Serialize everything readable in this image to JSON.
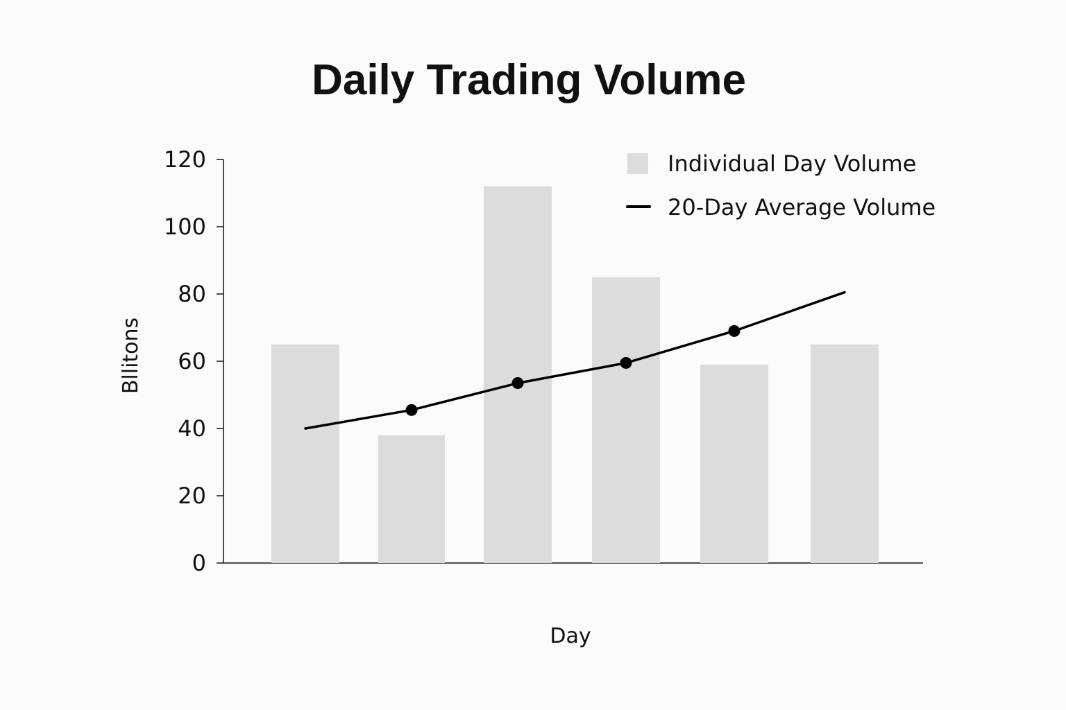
{
  "chart_data": {
    "type": "bar",
    "title": "Daily Trading Volume",
    "xlabel": "Day",
    "ylabel": "Bllitons",
    "ylim": [
      0,
      120
    ],
    "yticks": [
      0,
      20,
      40,
      60,
      80,
      100,
      120
    ],
    "categories": [
      "",
      "",
      "",
      "",
      "",
      ""
    ],
    "grid": false,
    "legend_position": "top-right",
    "series": [
      {
        "name": "Individual Day Volume",
        "kind": "bar",
        "color": "#dcdcdc",
        "values": [
          65,
          38,
          112,
          85,
          59,
          65
        ]
      },
      {
        "name": "20-Day Average Volume",
        "kind": "line",
        "color": "#000000",
        "values": [
          40,
          45.5,
          53.5,
          59.5,
          69,
          80.5
        ],
        "markers": [
          false,
          true,
          true,
          true,
          true,
          false
        ]
      }
    ]
  }
}
